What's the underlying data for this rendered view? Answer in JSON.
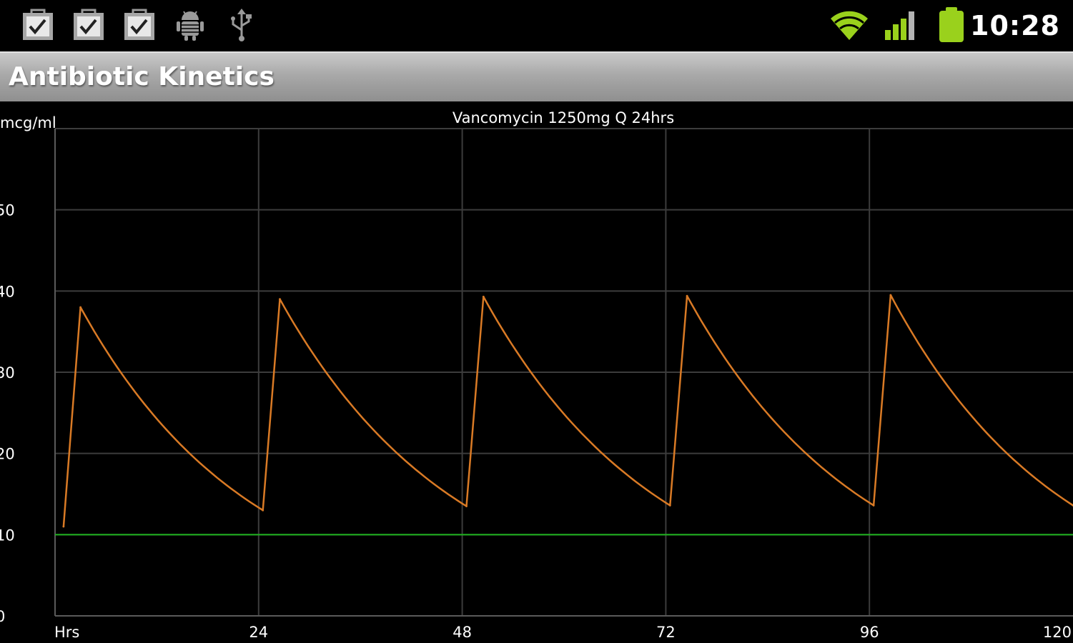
{
  "status_bar": {
    "time": "10:28",
    "notification_icons": [
      "checkbox-icon",
      "checkbox-icon",
      "checkbox-icon",
      "android-debug-icon",
      "usb-icon"
    ],
    "system_icons": [
      "wifi-icon",
      "signal-icon",
      "battery-icon"
    ],
    "colors": {
      "system_green": "#9ad11c"
    }
  },
  "app": {
    "title": "Antibiotic Kinetics"
  },
  "chart_data": {
    "type": "line",
    "title": "Vancomycin 1250mg Q 24hrs",
    "ylabel": "mcg/ml",
    "xlabel": "Hrs",
    "xlim": [
      0,
      120
    ],
    "ylim": [
      0,
      60
    ],
    "x_ticks": [
      24,
      48,
      72,
      96,
      120
    ],
    "y_ticks": [
      0,
      10,
      20,
      30,
      40,
      50
    ],
    "grid": true,
    "threshold": {
      "value": 10,
      "color": "#1fb41f"
    },
    "series": [
      {
        "color": "#d97a25",
        "dose_interval_hrs": 24,
        "infusion_hrs": 2,
        "peaks": [
          38.0,
          39.0,
          39.3,
          39.4,
          39.5
        ],
        "troughs": [
          11.0,
          13.0,
          13.5,
          13.6,
          13.6,
          13.6
        ],
        "points": [
          [
            1,
            11.0
          ],
          [
            3,
            38.0
          ],
          [
            24.5,
            13.0
          ],
          [
            26.5,
            39.0
          ],
          [
            48.5,
            13.5
          ],
          [
            50.5,
            39.3
          ],
          [
            72.5,
            13.6
          ],
          [
            74.5,
            39.4
          ],
          [
            96.5,
            13.6
          ],
          [
            98.5,
            39.5
          ],
          [
            120,
            13.6
          ]
        ]
      }
    ]
  }
}
